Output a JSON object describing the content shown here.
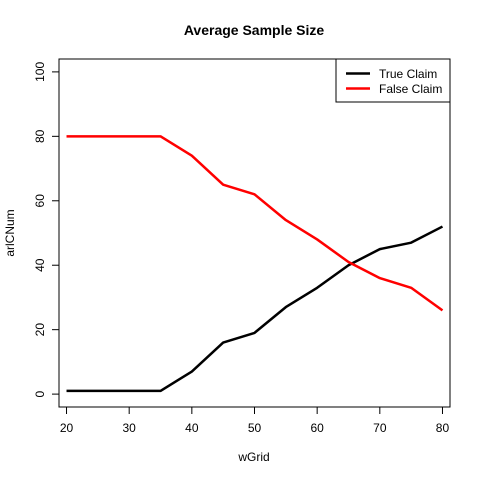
{
  "chart_data": {
    "type": "line",
    "title": "Average Sample Size",
    "xlabel": "wGrid",
    "ylabel": "arlCNum",
    "x": [
      20,
      25,
      30,
      35,
      40,
      45,
      50,
      55,
      60,
      65,
      70,
      75,
      80
    ],
    "xlim": [
      18.8,
      81.2
    ],
    "ylim": [
      -4,
      104
    ],
    "xticks": [
      "20",
      "30",
      "40",
      "50",
      "60",
      "70",
      "80"
    ],
    "yticks": [
      "0",
      "20",
      "40",
      "60",
      "80",
      "100"
    ],
    "grid": false,
    "legend_position": "top-right",
    "series": [
      {
        "name": "True Claim",
        "color": "#000000",
        "values": [
          1,
          1,
          1,
          1,
          7,
          16,
          19,
          27,
          33,
          40,
          45,
          47,
          52
        ]
      },
      {
        "name": "False Claim",
        "color": "#ff0000",
        "values": [
          80,
          80,
          80,
          80,
          74,
          65,
          62,
          54,
          48,
          41,
          36,
          33,
          26
        ]
      }
    ]
  }
}
